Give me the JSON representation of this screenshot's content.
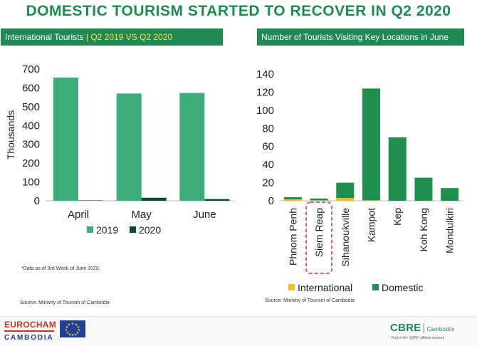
{
  "slide_title": "DOMESTIC TOURISM STARTED TO RECOVER IN Q2 2020",
  "left_panel": {
    "header_prefix": "International Tourists",
    "header_accent": "Q2 2019 VS Q2 2020",
    "note": "*Data as of 3rd Week of June 2020.",
    "source": "Source: Ministry of Tourism of Cambodia"
  },
  "right_panel": {
    "header": "Number of Tourists Visiting Key Locations in June",
    "source": "Source: Ministry of Tourism of Cambodia"
  },
  "footer": {
    "eurocham_line1": "EUROCHAM",
    "eurocham_line2": "CAMBODIA",
    "cbre_brand": "CBRE",
    "cbre_sub": "Cambodia",
    "cbre_tagline": "Part of the CBRE affiliate network"
  },
  "colors": {
    "title_green": "#1f8a52",
    "series_2019": "#3dae7a",
    "series_2020": "#0e4a30",
    "domestic": "#1f8f4e",
    "international": "#f2c21b",
    "highlight_box": "#d6579c"
  },
  "chart_data": [
    {
      "type": "bar",
      "categories": [
        "April",
        "May",
        "June"
      ],
      "series": [
        {
          "name": "2019",
          "values": [
            655,
            570,
            573
          ]
        },
        {
          "name": "2020",
          "values": [
            2,
            16,
            9
          ]
        }
      ],
      "title": "",
      "xlabel": "",
      "ylabel": "Thousands",
      "ylim": [
        0,
        700
      ],
      "yticks": [
        0,
        100,
        200,
        300,
        400,
        500,
        600,
        700
      ],
      "grid": false,
      "legend": "bottom"
    },
    {
      "type": "bar",
      "stacked": true,
      "categories": [
        "Phnom Penh",
        "Siem Reap",
        "Sihanoukville",
        "Kampot",
        "Kep",
        "Koh Kong",
        "Mondulkiri"
      ],
      "series": [
        {
          "name": "International",
          "values": [
            1.5,
            0.5,
            3,
            0.5,
            0,
            0,
            0
          ]
        },
        {
          "name": "Domestic",
          "values": [
            2.5,
            2,
            17,
            123.5,
            70,
            25.5,
            14
          ]
        }
      ],
      "title": "",
      "xlabel": "",
      "ylabel": "",
      "ylim": [
        0,
        140
      ],
      "yticks": [
        0,
        20,
        40,
        60,
        80,
        100,
        120,
        140
      ],
      "grid": false,
      "legend": "bottom",
      "highlighted_category": "Siem Reap"
    }
  ]
}
